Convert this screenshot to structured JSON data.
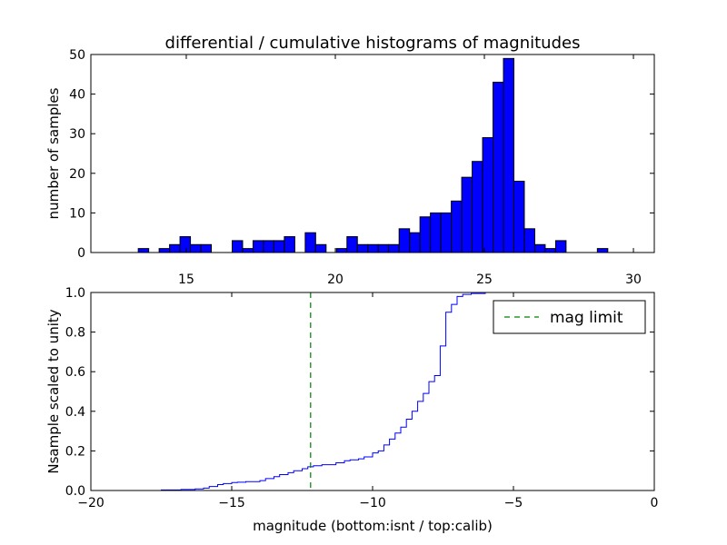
{
  "chart_data": [
    {
      "type": "bar",
      "title": "differential / cumulative histograms of magnitudes",
      "xlabel": "",
      "ylabel": "number of samples",
      "xlim": [
        11.8,
        30.7
      ],
      "ylim": [
        0,
        50
      ],
      "xticks": [
        15,
        20,
        25,
        30
      ],
      "yticks": [
        0,
        10,
        20,
        30,
        40,
        50
      ],
      "x_axis_position": "top",
      "bar_color": "#0000ff",
      "bin_width": 0.35,
      "bins": [
        {
          "left": 13.39,
          "count": 1
        },
        {
          "left": 14.09,
          "count": 1
        },
        {
          "left": 14.44,
          "count": 2
        },
        {
          "left": 14.79,
          "count": 4
        },
        {
          "left": 15.14,
          "count": 2
        },
        {
          "left": 15.49,
          "count": 2
        },
        {
          "left": 16.54,
          "count": 3
        },
        {
          "left": 16.89,
          "count": 1
        },
        {
          "left": 17.24,
          "count": 3
        },
        {
          "left": 17.59,
          "count": 3
        },
        {
          "left": 17.94,
          "count": 3
        },
        {
          "left": 18.29,
          "count": 4
        },
        {
          "left": 18.99,
          "count": 5
        },
        {
          "left": 19.34,
          "count": 2
        },
        {
          "left": 20.04,
          "count": 1
        },
        {
          "left": 20.39,
          "count": 4
        },
        {
          "left": 20.74,
          "count": 2
        },
        {
          "left": 21.09,
          "count": 2
        },
        {
          "left": 21.44,
          "count": 2
        },
        {
          "left": 21.79,
          "count": 2
        },
        {
          "left": 22.14,
          "count": 6
        },
        {
          "left": 22.49,
          "count": 5
        },
        {
          "left": 22.84,
          "count": 9
        },
        {
          "left": 23.19,
          "count": 10
        },
        {
          "left": 23.54,
          "count": 10
        },
        {
          "left": 23.89,
          "count": 13
        },
        {
          "left": 24.24,
          "count": 19
        },
        {
          "left": 24.59,
          "count": 23
        },
        {
          "left": 24.94,
          "count": 29
        },
        {
          "left": 25.29,
          "count": 43
        },
        {
          "left": 25.64,
          "count": 49
        },
        {
          "left": 25.99,
          "count": 18
        },
        {
          "left": 26.34,
          "count": 6
        },
        {
          "left": 26.69,
          "count": 2
        },
        {
          "left": 27.04,
          "count": 1
        },
        {
          "left": 27.39,
          "count": 3
        },
        {
          "left": 28.79,
          "count": 1
        }
      ]
    },
    {
      "type": "line",
      "drawstyle": "steps",
      "xlabel": "magnitude (bottom:isnt / top:calib)",
      "ylabel": "Nsample scaled to unity",
      "xlim": [
        -20,
        0
      ],
      "ylim": [
        0,
        1.0
      ],
      "xticks": [
        -20,
        -15,
        -10,
        -5,
        0
      ],
      "yticks": [
        0.0,
        0.2,
        0.4,
        0.6,
        0.8,
        1.0
      ],
      "ytick_labels": [
        "0.0",
        "0.2",
        "0.4",
        "0.6",
        "0.8",
        "1.0"
      ],
      "line_color": "#0000ff",
      "legend_position": "top-right",
      "mag_limit": {
        "name": "mag limit",
        "x": -12.2,
        "color": "#008000",
        "style": "dashed"
      },
      "series": [
        {
          "x": [
            -20,
            -17.5,
            -16.8,
            -16.3,
            -16.0,
            -15.8,
            -15.5,
            -15.3,
            -15.0,
            -14.8,
            -14.5,
            -14.0,
            -13.8,
            -13.5,
            -13.3,
            -13.0,
            -12.8,
            -12.5,
            -12.3,
            -12.1,
            -11.8,
            -11.5,
            -11.3,
            -11.0,
            -10.8,
            -10.5,
            -10.3,
            -10.0,
            -9.8,
            -9.6,
            -9.4,
            -9.2,
            -9.0,
            -8.8,
            -8.6,
            -8.4,
            -8.2,
            -8.0,
            -7.8,
            -7.6,
            -7.4,
            -7.2,
            -7.0,
            -6.8,
            -6.5,
            -6.0,
            -5.5,
            -5.0,
            0
          ],
          "y": [
            0.0,
            0.003,
            0.005,
            0.008,
            0.012,
            0.02,
            0.03,
            0.035,
            0.04,
            0.042,
            0.045,
            0.05,
            0.06,
            0.07,
            0.08,
            0.09,
            0.1,
            0.11,
            0.12,
            0.125,
            0.13,
            0.13,
            0.14,
            0.15,
            0.155,
            0.16,
            0.17,
            0.19,
            0.2,
            0.23,
            0.26,
            0.29,
            0.32,
            0.36,
            0.4,
            0.45,
            0.49,
            0.55,
            0.58,
            0.73,
            0.9,
            0.94,
            0.98,
            0.99,
            0.995,
            1.0,
            1.0,
            1.0,
            1.0
          ]
        }
      ]
    }
  ]
}
